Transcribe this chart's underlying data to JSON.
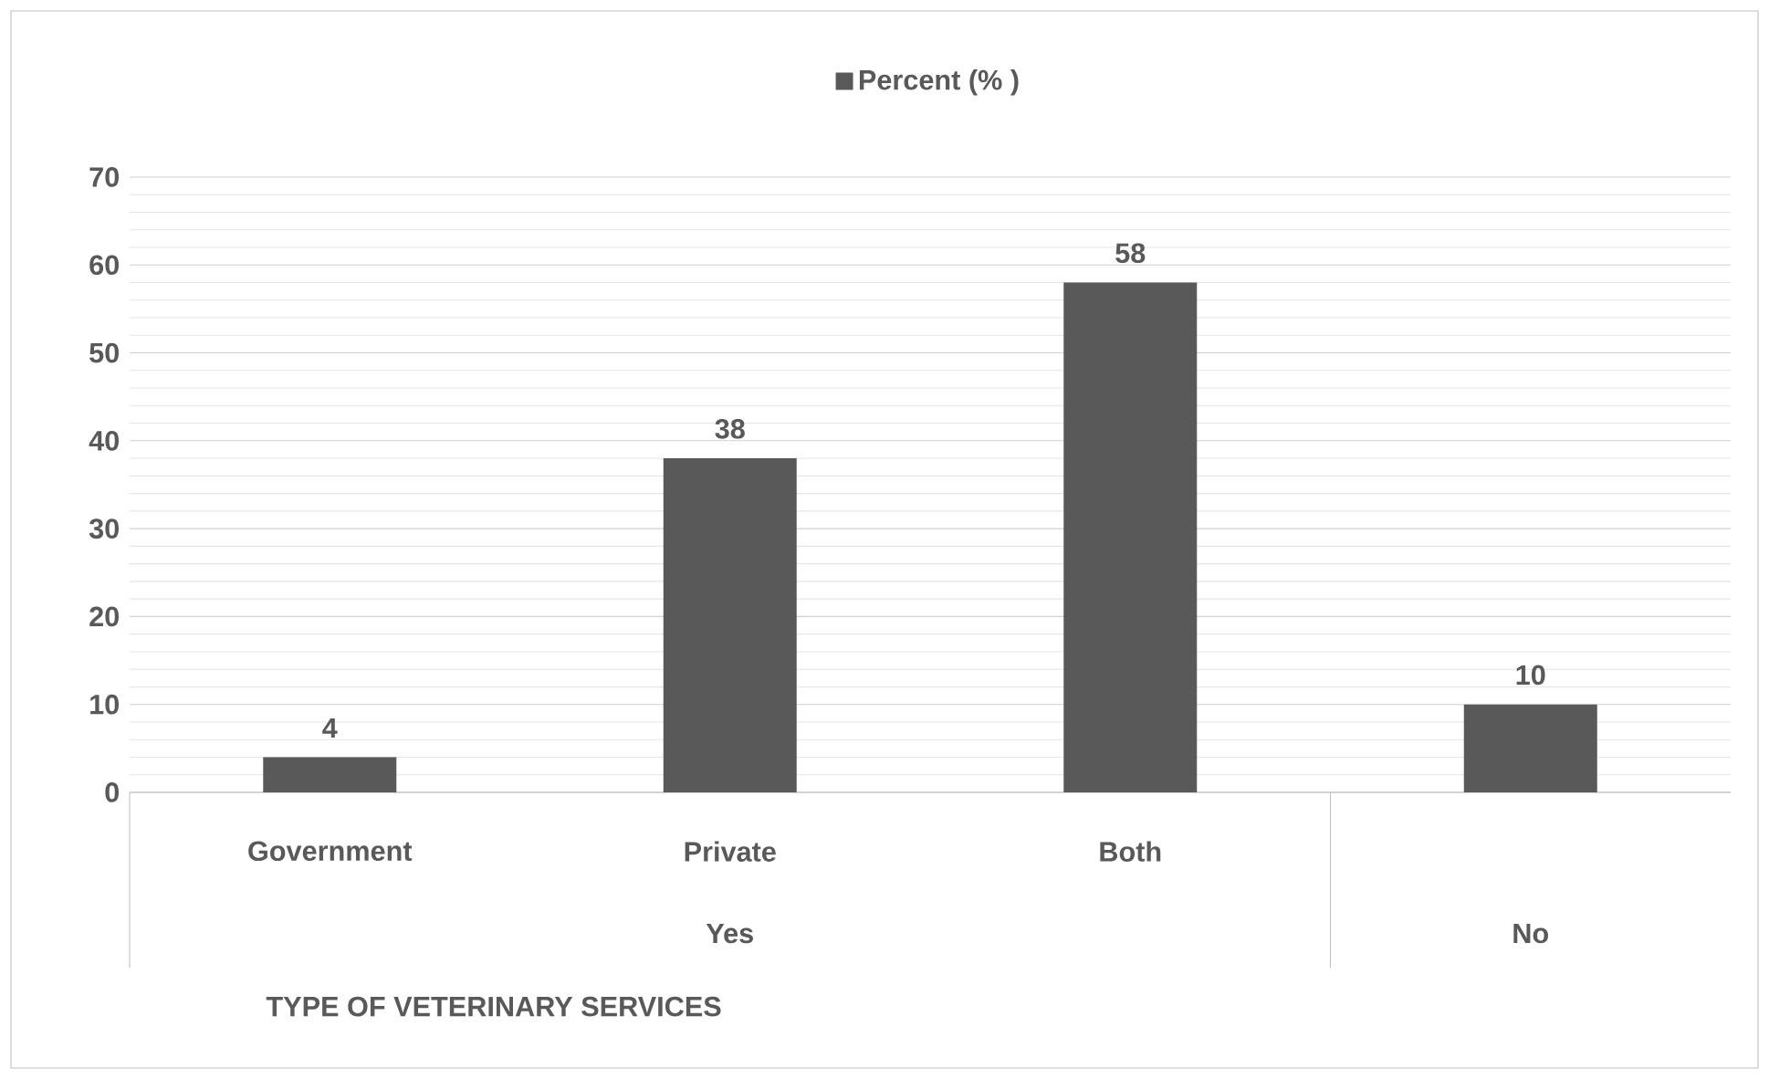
{
  "chart_data": {
    "type": "bar",
    "xlabel": "TYPE OF VETERINARY SERVICES",
    "categories": [
      "Government",
      "Private",
      "Both",
      null
    ],
    "series": [
      {
        "name": "Percent  (% )",
        "color": "#595959",
        "values": [
          4,
          38,
          58,
          10
        ]
      }
    ],
    "ylim": [
      0,
      70
    ],
    "yticks": [
      0,
      10,
      20,
      30,
      40,
      50,
      60,
      70
    ],
    "grid": "y",
    "legend": "top",
    "data_labels": true,
    "annotations": [
      "Yes",
      "No"
    ]
  }
}
